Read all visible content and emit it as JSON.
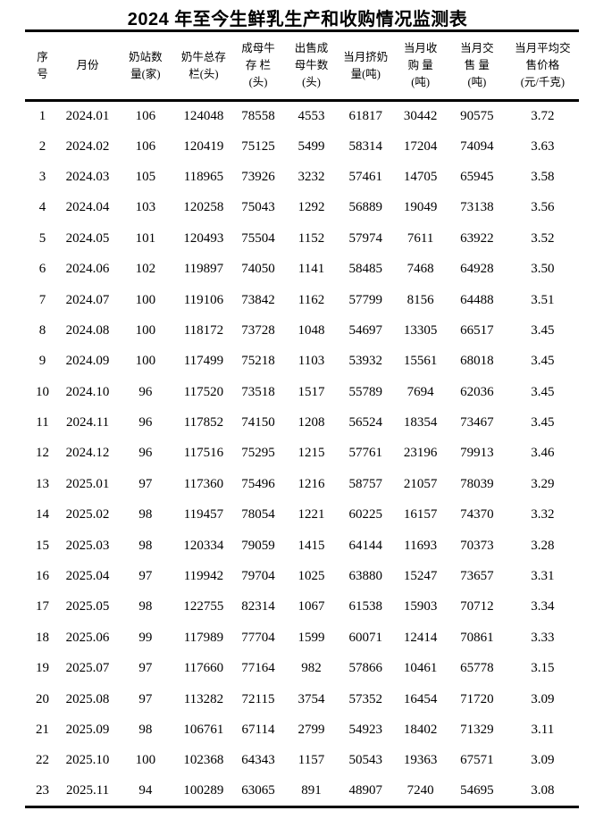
{
  "title": "2024 年至今生鲜乳生产和收购情况监测表",
  "table": {
    "columns": [
      {
        "id": "index",
        "label": "序号",
        "lines": [
          "序",
          "号"
        ]
      },
      {
        "id": "month",
        "label": "月份",
        "lines": [
          "月份"
        ]
      },
      {
        "id": "station-count",
        "label": "奶站数量(家)",
        "lines": [
          "奶站数",
          "量(家)"
        ]
      },
      {
        "id": "total-herd",
        "label": "奶牛总存栏(头)",
        "lines": [
          "奶牛总存",
          "栏(头)"
        ]
      },
      {
        "id": "adult-cow-herd",
        "label": "成母牛存栏(头)",
        "lines": [
          "成母牛",
          "存 栏",
          "(头)"
        ]
      },
      {
        "id": "sold-adult-cows",
        "label": "出售成母牛数(头)",
        "lines": [
          "出售成",
          "母牛数",
          "(头)"
        ]
      },
      {
        "id": "milked-volume",
        "label": "当月挤奶量(吨)",
        "lines": [
          "当月挤奶",
          "量(吨)"
        ]
      },
      {
        "id": "purchase-volume",
        "label": "当月收购量(吨)",
        "lines": [
          "当月收",
          "购 量",
          "(吨)"
        ]
      },
      {
        "id": "sale-volume",
        "label": "当月交售量(吨)",
        "lines": [
          "当月交",
          "售 量",
          "(吨)"
        ]
      },
      {
        "id": "avg-sale-price",
        "label": "当月平均交售价格(元/千克)",
        "lines": [
          "当月平均交",
          "售价格",
          "(元/千克)"
        ]
      }
    ],
    "rows": [
      [
        "1",
        "2024.01",
        "106",
        "124048",
        "78558",
        "4553",
        "61817",
        "30442",
        "90575",
        "3.72"
      ],
      [
        "2",
        "2024.02",
        "106",
        "120419",
        "75125",
        "5499",
        "58314",
        "17204",
        "74094",
        "3.63"
      ],
      [
        "3",
        "2024.03",
        "105",
        "118965",
        "73926",
        "3232",
        "57461",
        "14705",
        "65945",
        "3.58"
      ],
      [
        "4",
        "2024.04",
        "103",
        "120258",
        "75043",
        "1292",
        "56889",
        "19049",
        "73138",
        "3.56"
      ],
      [
        "5",
        "2024.05",
        "101",
        "120493",
        "75504",
        "1152",
        "57974",
        "7611",
        "63922",
        "3.52"
      ],
      [
        "6",
        "2024.06",
        "102",
        "119897",
        "74050",
        "1141",
        "58485",
        "7468",
        "64928",
        "3.50"
      ],
      [
        "7",
        "2024.07",
        "100",
        "119106",
        "73842",
        "1162",
        "57799",
        "8156",
        "64488",
        "3.51"
      ],
      [
        "8",
        "2024.08",
        "100",
        "118172",
        "73728",
        "1048",
        "54697",
        "13305",
        "66517",
        "3.45"
      ],
      [
        "9",
        "2024.09",
        "100",
        "117499",
        "75218",
        "1103",
        "53932",
        "15561",
        "68018",
        "3.45"
      ],
      [
        "10",
        "2024.10",
        "96",
        "117520",
        "73518",
        "1517",
        "55789",
        "7694",
        "62036",
        "3.45"
      ],
      [
        "11",
        "2024.11",
        "96",
        "117852",
        "74150",
        "1208",
        "56524",
        "18354",
        "73467",
        "3.45"
      ],
      [
        "12",
        "2024.12",
        "96",
        "117516",
        "75295",
        "1215",
        "57761",
        "23196",
        "79913",
        "3.46"
      ],
      [
        "13",
        "2025.01",
        "97",
        "117360",
        "75496",
        "1216",
        "58757",
        "21057",
        "78039",
        "3.29"
      ],
      [
        "14",
        "2025.02",
        "98",
        "119457",
        "78054",
        "1221",
        "60225",
        "16157",
        "74370",
        "3.32"
      ],
      [
        "15",
        "2025.03",
        "98",
        "120334",
        "79059",
        "1415",
        "64144",
        "11693",
        "70373",
        "3.28"
      ],
      [
        "16",
        "2025.04",
        "97",
        "119942",
        "79704",
        "1025",
        "63880",
        "15247",
        "73657",
        "3.31"
      ],
      [
        "17",
        "2025.05",
        "98",
        "122755",
        "82314",
        "1067",
        "61538",
        "15903",
        "70712",
        "3.34"
      ],
      [
        "18",
        "2025.06",
        "99",
        "117989",
        "77704",
        "1599",
        "60071",
        "12414",
        "70861",
        "3.33"
      ],
      [
        "19",
        "2025.07",
        "97",
        "117660",
        "77164",
        "982",
        "57866",
        "10461",
        "65778",
        "3.15"
      ],
      [
        "20",
        "2025.08",
        "97",
        "113282",
        "72115",
        "3754",
        "57352",
        "16454",
        "71720",
        "3.09"
      ],
      [
        "21",
        "2025.09",
        "98",
        "106761",
        "67114",
        "2799",
        "54923",
        "18402",
        "71329",
        "3.11"
      ],
      [
        "22",
        "2025.10",
        "100",
        "102368",
        "64343",
        "1157",
        "50543",
        "19363",
        "67571",
        "3.09"
      ],
      [
        "23",
        "2025.11",
        "94",
        "100289",
        "63065",
        "891",
        "48907",
        "7240",
        "54695",
        "3.08"
      ]
    ]
  }
}
